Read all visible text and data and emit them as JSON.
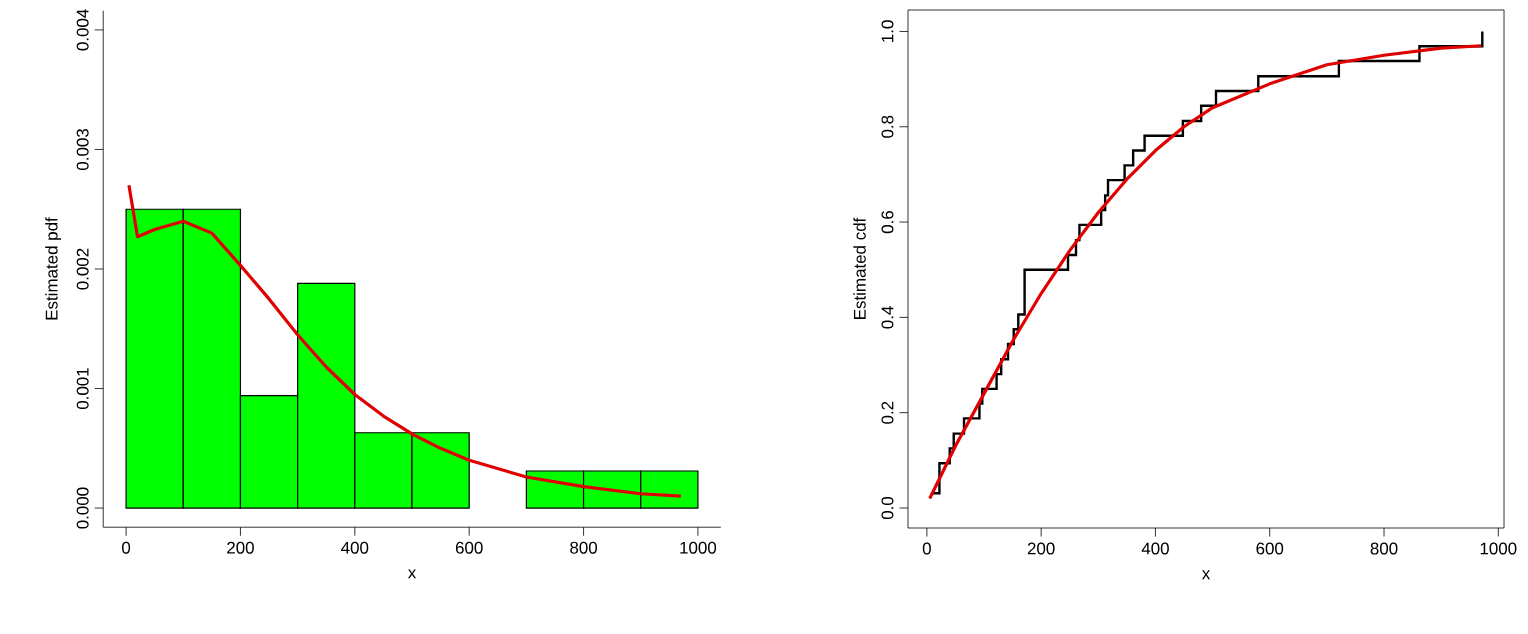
{
  "chart_data": [
    {
      "type": "histogram",
      "xlabel": "x",
      "ylabel": "Estimated pdf",
      "xlim": [
        -40,
        1040
      ],
      "ylim": [
        -0.00016,
        0.00416
      ],
      "xticks": [
        0,
        200,
        400,
        600,
        800,
        1000
      ],
      "yticks": [
        {
          "value": 0,
          "label": "0.000"
        },
        {
          "value": 0.001,
          "label": "0.001"
        },
        {
          "value": 0.002,
          "label": "0.002"
        },
        {
          "value": 0.003,
          "label": "0.003"
        },
        {
          "value": 0.004,
          "label": "0.004"
        }
      ],
      "series": [
        {
          "type": "histogram",
          "color": "#00ff00",
          "bins": [
            0,
            100,
            200,
            300,
            400,
            500,
            600,
            700,
            800,
            900,
            1000
          ],
          "values": [
            0.0025,
            0.0025,
            0.00094,
            0.00188,
            0.00063,
            0.00063,
            0,
            0.00031,
            0.00031,
            0.00031
          ]
        },
        {
          "type": "line",
          "color": "#e00000",
          "x": [
            5,
            20,
            50,
            100,
            150,
            200,
            250,
            300,
            350,
            400,
            450,
            500,
            550,
            600,
            650,
            700,
            750,
            800,
            850,
            900,
            970
          ],
          "values": [
            0.0027,
            0.00227,
            0.00233,
            0.0024,
            0.0023,
            0.00203,
            0.00175,
            0.00145,
            0.00118,
            0.00095,
            0.00077,
            0.00062,
            0.0005,
            0.0004,
            0.00033,
            0.00026,
            0.00022,
            0.00018,
            0.00015,
            0.00012,
            0.0001
          ]
        }
      ]
    },
    {
      "type": "step",
      "xlabel": "x",
      "ylabel": "Estimated cdf",
      "xlim": [
        -33,
        1010
      ],
      "ylim": [
        -0.042,
        1.045
      ],
      "xticks": [
        0,
        200,
        400,
        600,
        800,
        1000
      ],
      "yticks": [
        {
          "value": 0,
          "label": "0.0"
        },
        {
          "value": 0.2,
          "label": "0.2"
        },
        {
          "value": 0.4,
          "label": "0.4"
        },
        {
          "value": 0.6,
          "label": "0.6"
        },
        {
          "value": 0.8,
          "label": "0.8"
        },
        {
          "value": 1,
          "label": "1.0"
        }
      ],
      "series": [
        {
          "type": "step",
          "color": "#000000",
          "x": [
            10,
            22,
            40,
            47,
            65,
            92,
            97,
            122,
            130,
            142,
            152,
            160,
            171,
            247,
            261,
            267,
            305,
            312,
            317,
            346,
            361,
            381,
            448,
            480,
            506,
            580,
            721,
            862,
            972
          ],
          "values": [
            0.031,
            0.094,
            0.125,
            0.156,
            0.188,
            0.219,
            0.25,
            0.281,
            0.312,
            0.344,
            0.375,
            0.406,
            0.5,
            0.531,
            0.562,
            0.594,
            0.625,
            0.656,
            0.688,
            0.719,
            0.75,
            0.781,
            0.812,
            0.844,
            0.875,
            0.906,
            0.938,
            0.969,
            1.0
          ]
        },
        {
          "type": "line",
          "color": "#e00000",
          "x": [
            5,
            50,
            100,
            150,
            200,
            250,
            300,
            350,
            400,
            450,
            500,
            600,
            700,
            800,
            900,
            970
          ],
          "values": [
            0.02,
            0.13,
            0.24,
            0.35,
            0.45,
            0.54,
            0.62,
            0.69,
            0.75,
            0.8,
            0.84,
            0.89,
            0.93,
            0.95,
            0.965,
            0.97
          ]
        }
      ]
    }
  ]
}
